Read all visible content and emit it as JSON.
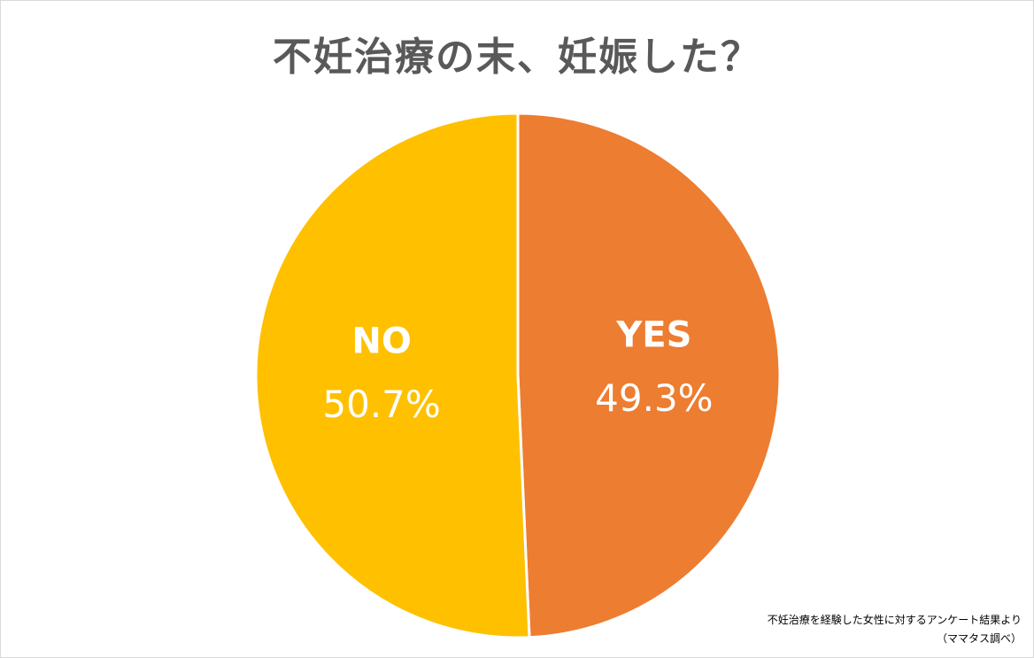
{
  "chart_data": {
    "type": "pie",
    "title": "不妊治療の末、妊娠した？",
    "slices": [
      {
        "label": "YES",
        "value": 49.3,
        "display": "49.3%",
        "color": "#ED7D31"
      },
      {
        "label": "NO",
        "value": 50.7,
        "display": "50.7%",
        "color": "#FFC000"
      }
    ],
    "start_angle_deg": 0,
    "direction": "clockwise",
    "slice_border_color": "#ffffff",
    "legend": "none"
  },
  "source_note": {
    "line1": "不妊治療を経験した女性に対するアンケート結果より",
    "line2": "（ママタス調べ）"
  }
}
